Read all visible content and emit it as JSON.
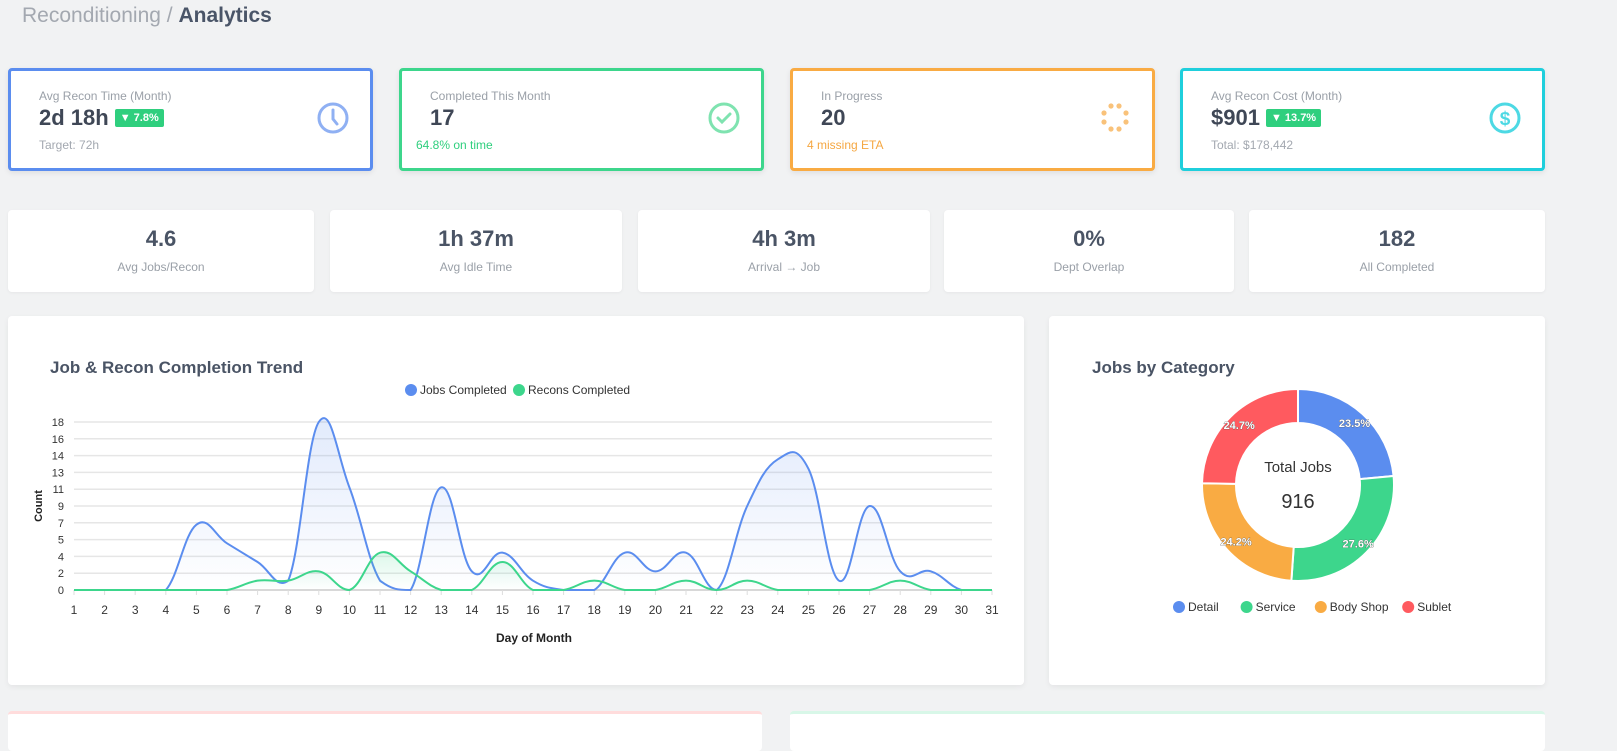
{
  "breadcrumb": {
    "parent": "Reconditioning",
    "separator": "/",
    "current": "Analytics"
  },
  "kpis": [
    {
      "label": "Avg Recon Time (Month)",
      "value": "2d 18h",
      "badge": "▼ 7.8%",
      "sub": "Target: 72h",
      "color": "#5b8def",
      "icon": "clock-icon"
    },
    {
      "label": "Completed This Month",
      "value": "17",
      "sub": "64.8% on time",
      "sub_color": "#2fcf7e",
      "color": "#3dd68c",
      "icon": "check-circle-icon"
    },
    {
      "label": "In Progress",
      "value": "20",
      "sub": "4 missing ETA",
      "sub_color": "#f5a742",
      "color": "#f9ab43",
      "icon": "spinner-icon"
    },
    {
      "label": "Avg Recon Cost (Month)",
      "value": "$901",
      "badge": "▼ 13.7%",
      "sub": "Total: $178,442",
      "color": "#1fcfdc",
      "icon": "dollar-circle-icon"
    }
  ],
  "stats": [
    {
      "value": "4.6",
      "label": "Avg Jobs/Recon"
    },
    {
      "value": "1h 37m",
      "label": "Avg Idle Time"
    },
    {
      "value": "4h 3m",
      "label": "Arrival → Job"
    },
    {
      "value": "0%",
      "label": "Dept Overlap"
    },
    {
      "value": "182",
      "label": "All Completed"
    }
  ],
  "chart_data": [
    {
      "type": "line",
      "title": "Job & Recon Completion Trend",
      "xlabel": "Day of Month",
      "ylabel": "Count",
      "x": [
        1,
        2,
        3,
        4,
        5,
        6,
        7,
        8,
        9,
        10,
        11,
        12,
        13,
        14,
        15,
        16,
        17,
        18,
        19,
        20,
        21,
        22,
        23,
        24,
        25,
        26,
        27,
        28,
        29,
        30,
        31
      ],
      "y_ticks": [
        "0",
        "2",
        "4",
        "5",
        "7",
        "9",
        "11",
        "13",
        "14",
        "16",
        "18"
      ],
      "ylim": [
        0,
        18
      ],
      "grid": true,
      "legend": "top",
      "series": [
        {
          "name": "Jobs Completed",
          "color": "#5b8def",
          "values": [
            0,
            0,
            0,
            0,
            7,
            5,
            3,
            1,
            18,
            11,
            1,
            0,
            11,
            2,
            4,
            1,
            0,
            0,
            4,
            2,
            4,
            0,
            9,
            14,
            13,
            1,
            9,
            2,
            2,
            0,
            0
          ]
        },
        {
          "name": "Recons Completed",
          "color": "#3dd68c",
          "values": [
            0,
            0,
            0,
            0,
            0,
            0,
            1,
            1,
            2,
            0,
            4,
            2,
            0,
            0,
            3,
            0,
            0,
            1,
            0,
            0,
            1,
            0,
            1,
            0,
            0,
            0,
            0,
            1,
            0,
            0,
            0
          ]
        }
      ]
    },
    {
      "type": "pie",
      "title": "Jobs by Category",
      "center_label": "Total Jobs",
      "center_value": "916",
      "legend": "bottom",
      "slices": [
        {
          "name": "Detail",
          "value": 23.5,
          "label": "23.5%",
          "color": "#5b8def"
        },
        {
          "name": "Service",
          "value": 27.6,
          "label": "27.6%",
          "color": "#3dd68c"
        },
        {
          "name": "Body Shop",
          "value": 24.2,
          "label": "24.2%",
          "color": "#f9ab43"
        },
        {
          "name": "Sublet",
          "value": 24.7,
          "label": "24.7%",
          "color": "#ff5a5f"
        }
      ]
    }
  ]
}
